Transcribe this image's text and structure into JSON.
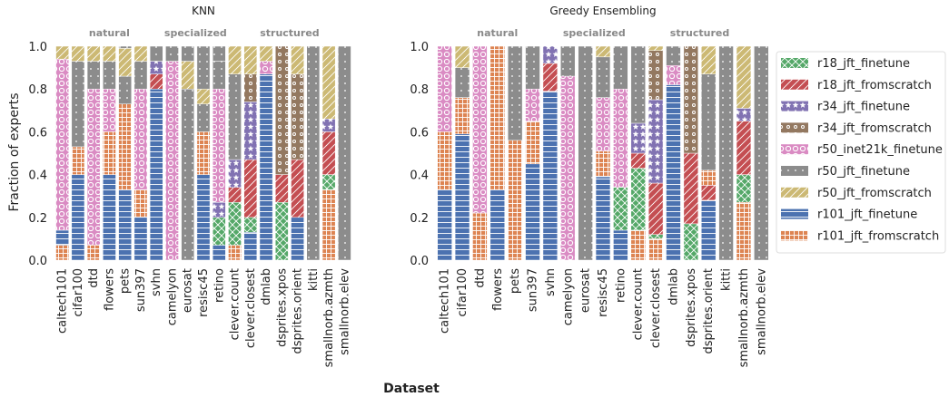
{
  "figure": {
    "xlabel": "Dataset",
    "ylabel": "Fraction of experts"
  },
  "legend_entries": [
    {
      "name": "r18_jft_finetune",
      "color": "#55a868",
      "pattern": "x"
    },
    {
      "name": "r18_jft_fromscratch",
      "color": "#c44e52",
      "pattern": "slash"
    },
    {
      "name": "r34_jft_finetune",
      "color": "#8172b2",
      "pattern": "star"
    },
    {
      "name": "r34_jft_fromscratch",
      "color": "#937860",
      "pattern": "ring"
    },
    {
      "name": "r50_inet21k_finetune",
      "color": "#da8bc3",
      "pattern": "circle"
    },
    {
      "name": "r50_jft_finetune",
      "color": "#8c8c8c",
      "pattern": "dot"
    },
    {
      "name": "r50_jft_fromscratch",
      "color": "#ccb974",
      "pattern": "slash"
    },
    {
      "name": "r101_jft_finetune",
      "color": "#4c72b0",
      "pattern": "hline"
    },
    {
      "name": "r101_jft_fromscratch",
      "color": "#dd8452",
      "pattern": "grid"
    }
  ],
  "chart_data": [
    {
      "type": "bar",
      "stacked": true,
      "title": "KNN",
      "group_labels": [
        "natural",
        "specialized",
        "structured"
      ],
      "ylim": [
        0,
        1.0
      ],
      "yticks": [
        "0.0",
        "0.2",
        "0.4",
        "0.6",
        "0.8",
        "1.0"
      ],
      "categories": [
        "caltech101",
        "cifar100",
        "dtd",
        "flowers",
        "pets",
        "sun397",
        "svhn",
        "camelyon",
        "eurosat",
        "resisc45",
        "retino",
        "clever.count",
        "clever.closest",
        "dmlab",
        "dsprites.xpos",
        "dsprites.orient",
        "kitti",
        "smallnorb.azmth",
        "smallnorb.elev"
      ],
      "series": [
        {
          "name": "r101_jft_fromscratch",
          "values": [
            0.07,
            0.0,
            0.07,
            0.0,
            0.0,
            0.0,
            0.0,
            0.0,
            0.0,
            0.0,
            0.0,
            0.07,
            0.0,
            0.0,
            0.0,
            0.0,
            0.0,
            0.33,
            0.0
          ]
        },
        {
          "name": "r101_jft_finetune",
          "values": [
            0.07,
            0.4,
            0.0,
            0.4,
            0.33,
            0.2,
            0.8,
            0.0,
            0.0,
            0.4,
            0.07,
            0.0,
            0.13,
            0.87,
            0.0,
            0.2,
            0.0,
            0.0,
            0.0
          ]
        },
        {
          "name": "r18_jft_finetune",
          "values": [
            0.0,
            0.0,
            0.0,
            0.0,
            0.0,
            0.0,
            0.0,
            0.0,
            0.0,
            0.0,
            0.13,
            0.2,
            0.07,
            0.0,
            0.27,
            0.0,
            0.0,
            0.07,
            0.0
          ]
        },
        {
          "name": "r18_jft_fromscratch",
          "values": [
            0.0,
            0.0,
            0.0,
            0.0,
            0.0,
            0.0,
            0.07,
            0.0,
            0.0,
            0.0,
            0.0,
            0.07,
            0.27,
            0.0,
            0.13,
            0.27,
            0.0,
            0.2,
            0.0
          ]
        },
        {
          "name": "r34_jft_finetune",
          "values": [
            0.0,
            0.0,
            0.0,
            0.0,
            0.0,
            0.0,
            0.06,
            0.0,
            0.0,
            0.0,
            0.07,
            0.13,
            0.27,
            0.0,
            0.0,
            0.0,
            0.0,
            0.06,
            0.0
          ]
        },
        {
          "name": "r34_jft_fromscratch",
          "values": [
            0.0,
            0.0,
            0.0,
            0.0,
            0.0,
            0.0,
            0.0,
            0.0,
            0.0,
            0.0,
            0.0,
            0.0,
            0.13,
            0.0,
            0.6,
            0.4,
            0.0,
            0.0,
            0.0
          ]
        },
        {
          "name": "r50_inet21k_finetune",
          "values": [
            0.8,
            0.0,
            0.73,
            0.0,
            0.0,
            0.0,
            0.0,
            0.93,
            0.0,
            0.0,
            0.53,
            0.0,
            0.0,
            0.06,
            0.0,
            0.0,
            0.0,
            0.0,
            0.0
          ]
        },
        {
          "name": "r101_jft_fromscratch",
          "values": [
            0.0,
            0.13,
            0.0,
            0.2,
            0.4,
            0.13,
            0.0,
            0.0,
            0.0,
            0.2,
            0.0,
            0.0,
            0.0,
            0.0,
            0.0,
            0.0,
            0.0,
            0.0,
            0.0
          ]
        },
        {
          "name": "r50_inet21k_finetune",
          "values": [
            0.0,
            0.0,
            0.0,
            0.2,
            0.0,
            0.47,
            0.0,
            0.0,
            0.0,
            0.0,
            0.0,
            0.0,
            0.0,
            0.0,
            0.0,
            0.0,
            0.0,
            0.0,
            0.0
          ]
        },
        {
          "name": "r50_jft_finetune",
          "values": [
            0.0,
            0.4,
            0.13,
            0.13,
            0.13,
            0.13,
            0.0,
            0.0,
            0.8,
            0.13,
            0.13,
            0.4,
            0.0,
            0.0,
            0.0,
            0.0,
            1.0,
            0.0,
            1.0
          ]
        },
        {
          "name": "r50_jft_fromscratch",
          "values": [
            0.06,
            0.07,
            0.07,
            0.07,
            0.13,
            0.07,
            0.0,
            0.0,
            0.13,
            0.07,
            0.0,
            0.13,
            0.13,
            0.07,
            0.0,
            0.13,
            0.0,
            0.34,
            0.0
          ]
        },
        {
          "name": "r50_jft_finetune",
          "values": [
            0.0,
            0.0,
            0.0,
            0.0,
            0.01,
            0.0,
            0.07,
            0.07,
            0.07,
            0.2,
            0.07,
            0.0,
            0.0,
            0.0,
            0.0,
            0.0,
            0.0,
            0.0,
            0.0
          ]
        }
      ]
    },
    {
      "type": "bar",
      "stacked": true,
      "title": "Greedy Ensembling",
      "group_labels": [
        "natural",
        "specialized",
        "structured"
      ],
      "ylim": [
        0,
        1.0
      ],
      "yticks": [
        "0.0",
        "0.2",
        "0.4",
        "0.6",
        "0.8",
        "1.0"
      ],
      "categories": [
        "caltech101",
        "cifar100",
        "dtd",
        "flowers",
        "pets",
        "sun397",
        "svhn",
        "camelyon",
        "eurosat",
        "resisc45",
        "retino",
        "clever.count",
        "clever.closest",
        "dmlab",
        "dsprites.xpos",
        "dsprites.orient",
        "kitti",
        "smallnorb.azmth",
        "smallnorb.elev"
      ],
      "series": [
        {
          "name": "r101_jft_fromscratch",
          "values": [
            0.0,
            0.0,
            0.22,
            0.0,
            0.0,
            0.0,
            0.0,
            0.0,
            0.0,
            0.0,
            0.0,
            0.14,
            0.1,
            0.0,
            0.0,
            0.0,
            0.0,
            0.27,
            0.0
          ]
        },
        {
          "name": "r101_jft_finetune",
          "values": [
            0.33,
            0.59,
            0.0,
            0.33,
            0.0,
            0.45,
            0.79,
            0.0,
            0.0,
            0.39,
            0.14,
            0.0,
            0.0,
            0.82,
            0.0,
            0.28,
            0.0,
            0.0,
            0.0
          ]
        },
        {
          "name": "r18_jft_finetune",
          "values": [
            0.0,
            0.0,
            0.0,
            0.0,
            0.0,
            0.0,
            0.0,
            0.0,
            0.0,
            0.0,
            0.2,
            0.29,
            0.02,
            0.0,
            0.17,
            0.0,
            0.0,
            0.13,
            0.0
          ]
        },
        {
          "name": "r18_jft_fromscratch",
          "values": [
            0.0,
            0.0,
            0.0,
            0.0,
            0.0,
            0.0,
            0.13,
            0.0,
            0.0,
            0.0,
            0.0,
            0.07,
            0.24,
            0.0,
            0.33,
            0.07,
            0.0,
            0.25,
            0.0
          ]
        },
        {
          "name": "r34_jft_finetune",
          "values": [
            0.0,
            0.0,
            0.0,
            0.0,
            0.0,
            0.0,
            0.08,
            0.0,
            0.0,
            0.0,
            0.0,
            0.14,
            0.39,
            0.0,
            0.0,
            0.0,
            0.0,
            0.06,
            0.0
          ]
        },
        {
          "name": "r34_jft_fromscratch",
          "values": [
            0.0,
            0.0,
            0.0,
            0.0,
            0.0,
            0.0,
            0.0,
            0.0,
            0.0,
            0.0,
            0.0,
            0.0,
            0.23,
            0.0,
            0.5,
            0.0,
            0.0,
            0.0,
            0.0
          ]
        },
        {
          "name": "r50_inet21k_finetune",
          "values": [
            0.0,
            0.0,
            0.78,
            0.0,
            0.0,
            0.0,
            0.0,
            0.86,
            0.0,
            0.0,
            0.0,
            0.0,
            0.0,
            0.09,
            0.0,
            0.0,
            0.0,
            0.0,
            0.0
          ]
        },
        {
          "name": "r101_jft_fromscratch",
          "values": [
            0.27,
            0.17,
            0.0,
            0.67,
            0.56,
            0.2,
            0.0,
            0.0,
            0.0,
            0.12,
            0.0,
            0.0,
            0.0,
            0.0,
            0.0,
            0.07,
            0.0,
            0.0,
            0.0
          ]
        },
        {
          "name": "r50_inet21k_finetune",
          "values": [
            0.4,
            0.0,
            0.0,
            0.0,
            0.0,
            0.15,
            0.0,
            0.0,
            0.0,
            0.25,
            0.46,
            0.0,
            0.0,
            0.0,
            0.0,
            0.0,
            0.0,
            0.0,
            0.0
          ]
        },
        {
          "name": "r50_jft_finetune",
          "values": [
            0.0,
            0.14,
            0.0,
            0.0,
            0.44,
            0.2,
            0.0,
            0.14,
            1.0,
            0.19,
            0.2,
            0.36,
            0.0,
            0.0,
            0.0,
            0.45,
            1.0,
            0.0,
            1.0
          ]
        },
        {
          "name": "r50_jft_fromscratch",
          "values": [
            0.0,
            0.1,
            0.0,
            0.0,
            0.0,
            0.0,
            0.0,
            0.0,
            0.0,
            0.05,
            0.0,
            0.0,
            0.02,
            0.0,
            0.0,
            0.13,
            0.0,
            0.29,
            0.0
          ]
        },
        {
          "name": "r50_jft_finetune",
          "values": [
            0.0,
            0.0,
            0.0,
            0.0,
            0.0,
            0.0,
            0.0,
            0.0,
            0.0,
            0.0,
            0.0,
            0.0,
            0.0,
            0.09,
            0.0,
            0.0,
            0.0,
            0.0,
            0.0
          ]
        }
      ]
    }
  ]
}
